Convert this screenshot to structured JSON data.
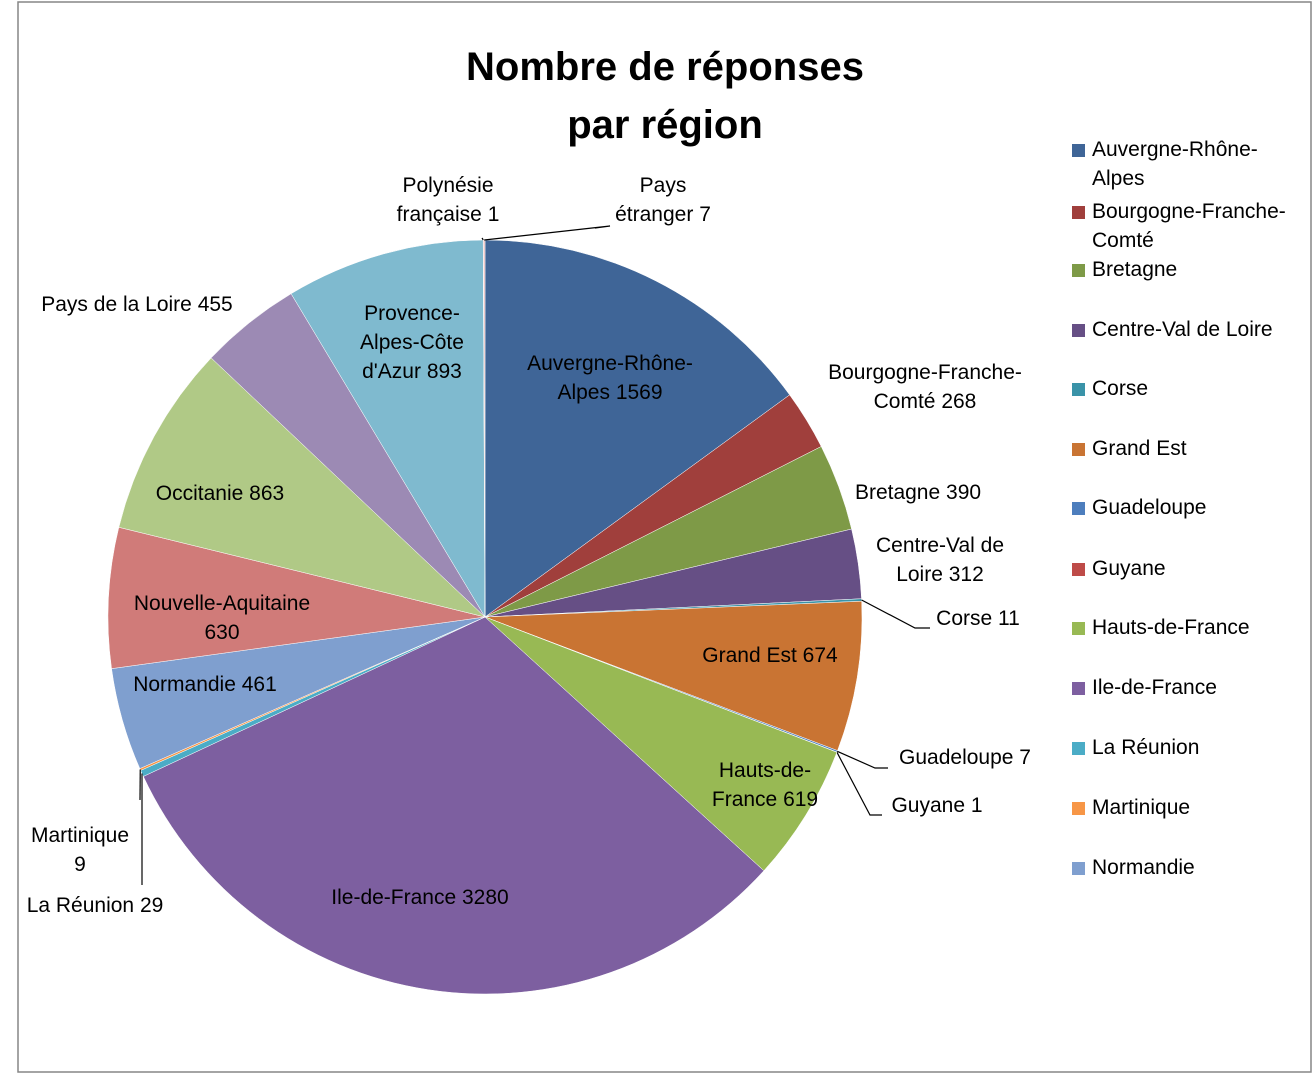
{
  "chart_data": {
    "type": "pie",
    "title": "Nombre de réponses par région",
    "categories": [
      "Auvergne-Rhône-Alpes",
      "Bourgogne-Franche-Comté",
      "Bretagne",
      "Centre-Val de Loire",
      "Corse",
      "Grand Est",
      "Guadeloupe",
      "Guyane",
      "Hauts-de-France",
      "Ile-de-France",
      "La Réunion",
      "Martinique",
      "Normandie",
      "Nouvelle-Aquitaine",
      "Occitanie",
      "Pays de la Loire",
      "Provence-Alpes-Côte d'Azur",
      "Polynésie française",
      "Pays étranger"
    ],
    "values": [
      1569,
      268,
      390,
      312,
      11,
      674,
      7,
      1,
      619,
      3280,
      29,
      9,
      461,
      630,
      863,
      455,
      893,
      1,
      7
    ],
    "colors": [
      "#3f6597",
      "#a03f3c",
      "#7e9a47",
      "#664f85",
      "#3a93a8",
      "#c97433",
      "#4d7ebd",
      "#be4b48",
      "#98b954",
      "#7d5fa0",
      "#4bacc6",
      "#f79646",
      "#7f9fcf",
      "#d07b79",
      "#b0c986",
      "#9c8ab4",
      "#7fbacf",
      "#c8d6ea",
      "#e8b9b8"
    ],
    "legend": "right"
  }
}
